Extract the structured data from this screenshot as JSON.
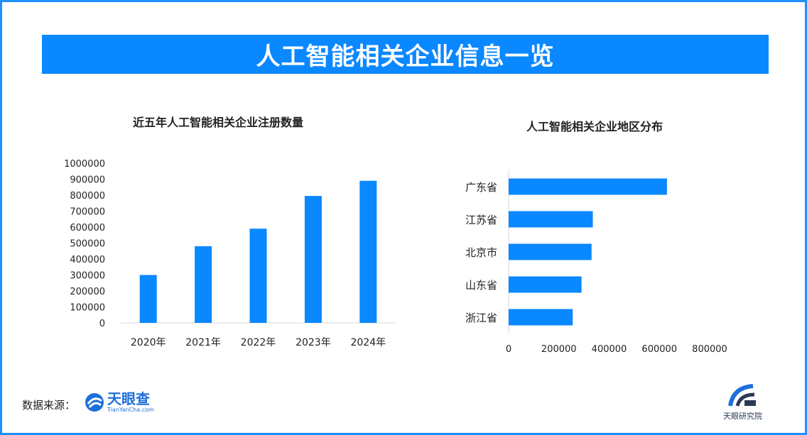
{
  "header": {
    "title": "人工智能相关企业信息一览"
  },
  "chart_data": [
    {
      "type": "bar",
      "title": "近五年人工智能相关企业注册数量",
      "categories": [
        "2020年",
        "2021年",
        "2022年",
        "2023年",
        "2024年"
      ],
      "values": [
        300000,
        480000,
        590000,
        795000,
        890000
      ],
      "ylim": [
        0,
        1000000
      ],
      "yticks": [
        0,
        100000,
        200000,
        300000,
        400000,
        500000,
        600000,
        700000,
        800000,
        900000,
        1000000
      ],
      "color": "#0a88ff",
      "grid": false
    },
    {
      "type": "bar",
      "orientation": "horizontal",
      "title": "人工智能相关企业地区分布",
      "categories": [
        "广东省",
        "江苏省",
        "北京市",
        "山东省",
        "浙江省"
      ],
      "values": [
        630000,
        335000,
        330000,
        290000,
        255000
      ],
      "xlim": [
        0,
        800000
      ],
      "xticks": [
        0,
        200000,
        400000,
        600000,
        800000
      ],
      "color": "#0a88ff",
      "grid": false
    }
  ],
  "footer": {
    "source_label": "数据来源：",
    "logo_name": "天眼查",
    "logo_domain": "TianYanCha.com",
    "institute": "天眼研究院"
  },
  "icons": {
    "logo": "tianyancha-logo-icon",
    "institute": "tianyancha-institute-logo-icon"
  }
}
